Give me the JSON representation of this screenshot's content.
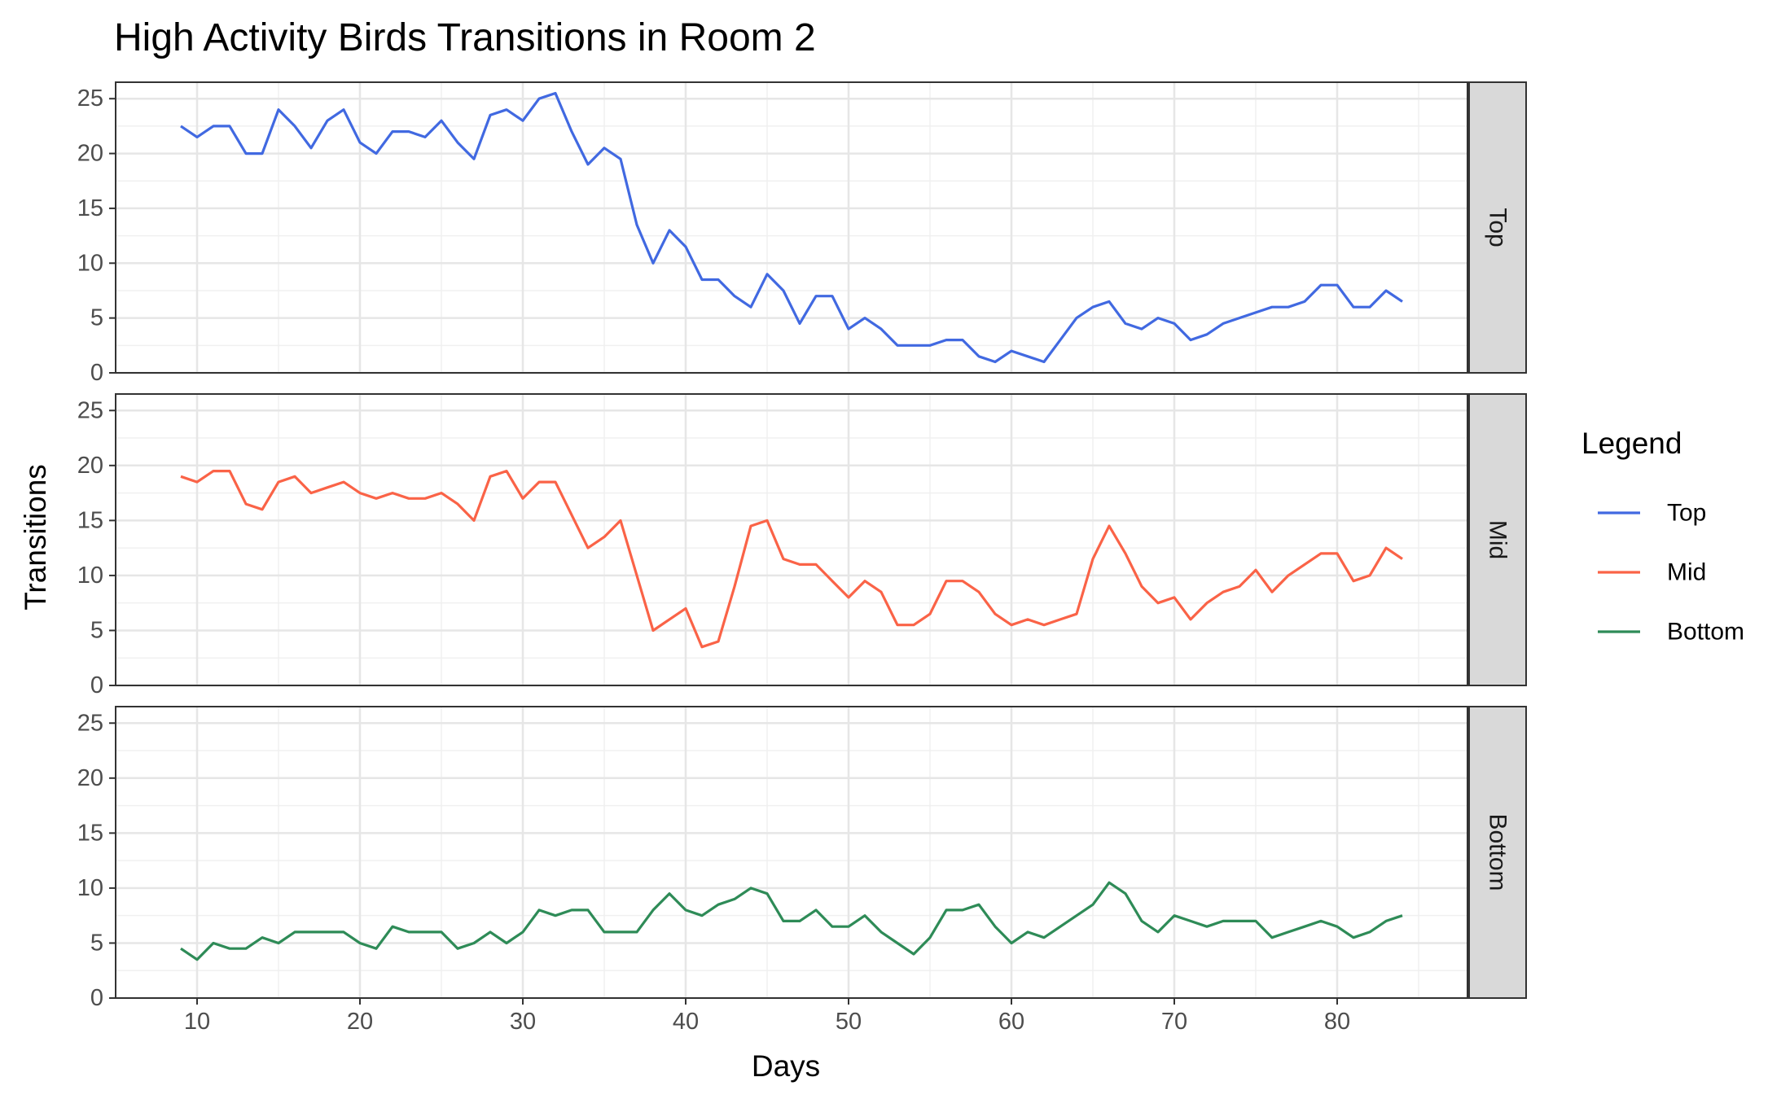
{
  "chart_data": {
    "type": "line",
    "title": "High Activity Birds Transitions in Room 2",
    "xlabel": "Days",
    "ylabel": "Transitions",
    "xlim": [
      5,
      88
    ],
    "ylim": [
      0,
      26.5
    ],
    "x_ticks": [
      10,
      20,
      30,
      40,
      50,
      60,
      70,
      80
    ],
    "y_ticks": [
      0,
      5,
      10,
      15,
      20,
      25
    ],
    "grid": true,
    "facets": [
      "Top",
      "Mid",
      "Bottom"
    ],
    "legend": {
      "title": "Legend",
      "position": "right",
      "entries": [
        "Top",
        "Mid",
        "Bottom"
      ]
    },
    "x": [
      9,
      10,
      11,
      12,
      13,
      14,
      15,
      16,
      17,
      18,
      19,
      20,
      21,
      22,
      23,
      24,
      25,
      26,
      27,
      28,
      29,
      30,
      31,
      32,
      33,
      34,
      35,
      36,
      37,
      38,
      39,
      40,
      41,
      42,
      43,
      44,
      45,
      46,
      47,
      48,
      49,
      50,
      51,
      52,
      53,
      54,
      55,
      56,
      57,
      58,
      59,
      60,
      61,
      62,
      63,
      64,
      65,
      66,
      67,
      68,
      69,
      70,
      71,
      72,
      73,
      74,
      75,
      76,
      77,
      78,
      79,
      80,
      81,
      82,
      83,
      84
    ],
    "series": [
      {
        "name": "Top",
        "facet": "Top",
        "color": "#4169E1",
        "values": [
          22.5,
          21.5,
          22.5,
          22.5,
          20,
          20,
          24,
          22.5,
          20.5,
          23,
          24,
          21,
          20,
          22,
          22,
          21.5,
          23,
          21,
          19.5,
          23.5,
          24,
          23,
          25,
          25.5,
          22,
          19,
          20.5,
          19.5,
          13.5,
          10,
          13,
          11.5,
          8.5,
          8.5,
          7,
          6,
          9,
          7.5,
          4.5,
          7,
          7,
          4,
          5,
          4,
          2.5,
          2.5,
          2.5,
          3,
          3,
          1.5,
          1,
          2,
          1.5,
          1,
          3,
          5,
          6,
          6.5,
          4.5,
          4,
          5,
          4.5,
          3,
          3.5,
          4.5,
          5,
          5.5,
          6,
          6,
          6.5,
          8,
          8,
          6,
          6,
          7.5,
          6.5
        ]
      },
      {
        "name": "Mid",
        "facet": "Mid",
        "color": "#FA6347",
        "values": [
          19,
          18.5,
          19.5,
          19.5,
          16.5,
          16,
          18.5,
          19,
          17.5,
          18,
          18.5,
          17.5,
          17,
          17.5,
          17,
          17,
          17.5,
          16.5,
          15,
          19,
          19.5,
          17,
          18.5,
          18.5,
          15.5,
          12.5,
          13.5,
          15,
          10,
          5,
          6,
          7,
          3.5,
          4,
          9,
          14.5,
          15,
          11.5,
          11,
          11,
          9.5,
          8,
          9.5,
          8.5,
          5.5,
          5.5,
          6.5,
          9.5,
          9.5,
          8.5,
          6.5,
          5.5,
          6,
          5.5,
          6,
          6.5,
          11.5,
          14.5,
          12,
          9,
          7.5,
          8,
          6,
          7.5,
          8.5,
          9,
          10.5,
          8.5,
          10,
          11,
          12,
          12,
          9.5,
          10,
          12.5,
          11.5
        ]
      },
      {
        "name": "Bottom",
        "facet": "Bottom",
        "color": "#2E8B57",
        "values": [
          4.5,
          3.5,
          5,
          4.5,
          4.5,
          5.5,
          5,
          6,
          6,
          6,
          6,
          5,
          4.5,
          6.5,
          6,
          6,
          6,
          4.5,
          5,
          6,
          5,
          6,
          8,
          7.5,
          8,
          8,
          6,
          6,
          6,
          8,
          9.5,
          8,
          7.5,
          8.5,
          9,
          10,
          9.5,
          7,
          7,
          8,
          6.5,
          6.5,
          7.5,
          6,
          5,
          4,
          5.5,
          8,
          8,
          8.5,
          6.5,
          5,
          6,
          5.5,
          6.5,
          7.5,
          8.5,
          10.5,
          9.5,
          7,
          6,
          7.5,
          7,
          6.5,
          7,
          7,
          7,
          5.5,
          6,
          6.5,
          7,
          6.5,
          5.5,
          6,
          7,
          7.5
        ]
      }
    ]
  }
}
